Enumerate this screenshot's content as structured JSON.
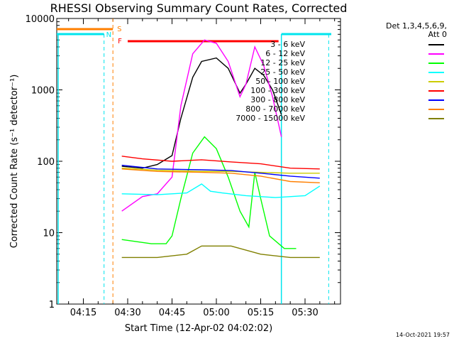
{
  "chart_data": {
    "type": "line",
    "title": "RHESSI Observing Summary Count Rates, Corrected",
    "xlabel": "Start Time (12-Apr-02 04:02:02)",
    "ylabel": "Corrected Count Rate (s⁻¹ detector⁻¹)",
    "y_scale": "log",
    "ylim": [
      1,
      10000
    ],
    "xlim_minutes": [
      4.0,
      100.0
    ],
    "x_ticks": [
      "04:15",
      "04:30",
      "04:45",
      "05:00",
      "05:15",
      "05:30"
    ],
    "y_ticks": [
      "1",
      "10",
      "100",
      "1000",
      "10000"
    ],
    "legend_header": [
      "Det 1,3,4,5,6,9,",
      "Att 0"
    ],
    "grid": false,
    "legend_position": "right",
    "flag_markers": [
      {
        "label": "S",
        "color": "#ff7f00"
      },
      {
        "label": "N",
        "color": "#00e5ee"
      },
      {
        "label": "F",
        "color": "#ff0000"
      }
    ],
    "series": [
      {
        "name": "3 - 6 keV",
        "color": "#000000",
        "x": [
          "04:28",
          "04:35",
          "04:40",
          "04:45",
          "04:48",
          "04:52",
          "04:55",
          "05:00",
          "05:04",
          "05:08",
          "05:10",
          "05:13",
          "05:16",
          "05:19",
          "05:22"
        ],
        "y": [
          85,
          80,
          90,
          120,
          400,
          1500,
          2500,
          2800,
          2000,
          900,
          1200,
          2000,
          1600,
          1000,
          450
        ]
      },
      {
        "name": "6 - 12 keV",
        "color": "#ff00ff",
        "x": [
          "04:28",
          "04:35",
          "04:40",
          "04:45",
          "04:48",
          "04:52",
          "04:56",
          "05:00",
          "05:04",
          "05:08",
          "05:10",
          "05:13",
          "05:16",
          "05:19",
          "05:22"
        ],
        "y": [
          20,
          32,
          35,
          60,
          600,
          3200,
          5000,
          4500,
          2500,
          800,
          1200,
          4000,
          2200,
          800,
          220
        ]
      },
      {
        "name": "12 - 25 keV",
        "color": "#00ff00",
        "x": [
          "04:28",
          "04:38",
          "04:43",
          "04:45",
          "04:48",
          "04:52",
          "04:56",
          "05:00",
          "05:04",
          "05:08",
          "05:11",
          "05:13",
          "05:15",
          "05:18",
          "05:23",
          "05:27"
        ],
        "y": [
          8,
          7,
          7,
          9,
          30,
          130,
          220,
          150,
          60,
          20,
          12,
          70,
          30,
          9,
          6,
          6
        ]
      },
      {
        "name": "25 - 50 keV",
        "color": "#00ffff",
        "x": [
          "04:28",
          "04:40",
          "04:50",
          "04:55",
          "04:58",
          "05:02",
          "05:10",
          "05:20",
          "05:30",
          "05:35"
        ],
        "y": [
          35,
          34,
          36,
          48,
          38,
          36,
          33,
          31,
          33,
          45
        ]
      },
      {
        "name": "50 - 100 keV",
        "color": "#cccc00",
        "x": [
          "04:28",
          "04:40",
          "04:55",
          "05:05",
          "05:15",
          "05:25",
          "05:35"
        ],
        "y": [
          80,
          75,
          72,
          72,
          70,
          68,
          68
        ]
      },
      {
        "name": "100 - 300 keV",
        "color": "#ff0000",
        "x": [
          "04:28",
          "04:35",
          "04:45",
          "04:55",
          "05:05",
          "05:15",
          "05:25",
          "05:35"
        ],
        "y": [
          118,
          108,
          100,
          105,
          98,
          92,
          80,
          78
        ]
      },
      {
        "name": "300 - 800 keV",
        "color": "#0000ff",
        "x": [
          "04:28",
          "04:40",
          "04:55",
          "05:05",
          "05:15",
          "05:25",
          "05:35"
        ],
        "y": [
          88,
          78,
          76,
          74,
          68,
          62,
          58
        ]
      },
      {
        "name": "800 - 7000 keV",
        "color": "#ff7f00",
        "x": [
          "04:28",
          "04:40",
          "04:55",
          "05:05",
          "05:15",
          "05:25",
          "05:35"
        ],
        "y": [
          78,
          72,
          70,
          68,
          62,
          52,
          50
        ]
      },
      {
        "name": "7000 - 15000 keV",
        "color": "#808000",
        "x": [
          "04:28",
          "04:40",
          "04:50",
          "04:55",
          "05:05",
          "05:15",
          "05:25",
          "05:35"
        ],
        "y": [
          4.5,
          4.5,
          5,
          6.5,
          6.5,
          5,
          4.5,
          4.5
        ]
      }
    ]
  },
  "timestamp": "14-Oct-2021 19:57"
}
